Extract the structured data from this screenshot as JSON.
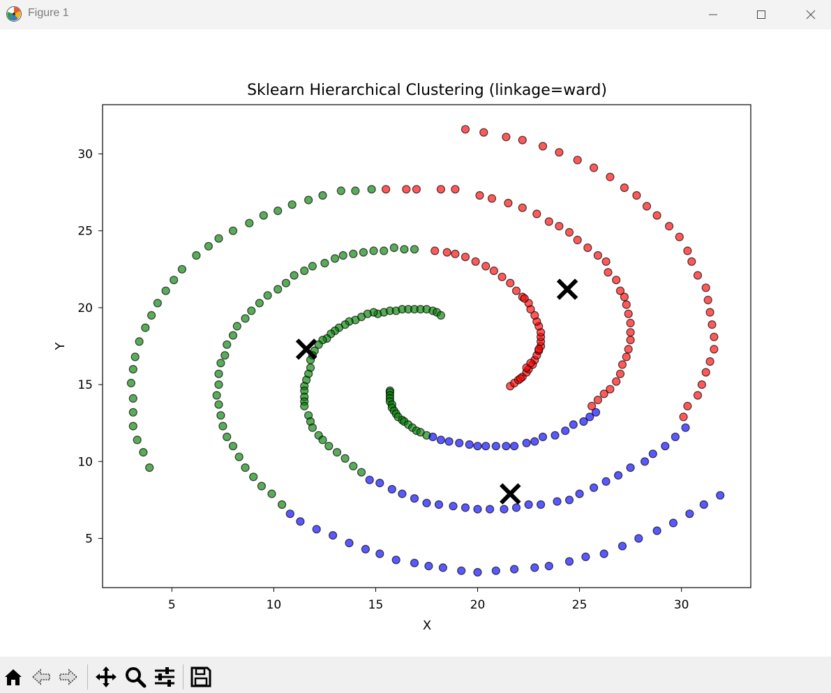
{
  "window": {
    "title": "Figure 1",
    "app_icon": "matplotlib-icon"
  },
  "toolbar": {
    "items": [
      {
        "name": "home-button",
        "icon": "home-icon"
      },
      {
        "name": "back-button",
        "icon": "back-arrow-icon"
      },
      {
        "name": "forward-button",
        "icon": "forward-arrow-icon"
      },
      {
        "name": "pan-button",
        "icon": "pan-move-icon"
      },
      {
        "name": "zoom-button",
        "icon": "zoom-magnifier-icon"
      },
      {
        "name": "configure-subplots-button",
        "icon": "sliders-icon"
      },
      {
        "name": "save-button",
        "icon": "floppy-disk-icon"
      }
    ]
  },
  "chart_data": {
    "type": "scatter",
    "title": "Sklearn Hierarchical Clustering  (linkage=ward)",
    "xlabel": "X",
    "ylabel": "Y",
    "xlim": [
      1.6,
      33.4
    ],
    "ylim": [
      1.8,
      33.2
    ],
    "xticks": [
      5,
      10,
      15,
      20,
      25,
      30
    ],
    "yticks": [
      5,
      10,
      15,
      20,
      25,
      30
    ],
    "grid": false,
    "point_alpha": 0.65,
    "series": [
      {
        "color": "#008000",
        "points": [
          [
            15.7,
            14.6
          ],
          [
            15.7,
            14.5
          ],
          [
            15.7,
            14.3
          ],
          [
            15.7,
            14.1
          ],
          [
            15.7,
            13.9
          ],
          [
            15.8,
            13.7
          ],
          [
            15.8,
            13.5
          ],
          [
            15.9,
            13.3
          ],
          [
            16.0,
            13.1
          ],
          [
            16.1,
            12.9
          ],
          [
            16.3,
            12.7
          ],
          [
            16.4,
            12.6
          ],
          [
            16.6,
            12.4
          ],
          [
            16.8,
            12.2
          ],
          [
            17.0,
            12.0
          ],
          [
            17.2,
            11.9
          ],
          [
            17.5,
            11.7
          ],
          [
            15.1,
            19.6
          ],
          [
            15.4,
            19.7
          ],
          [
            15.7,
            19.8
          ],
          [
            16.0,
            19.8
          ],
          [
            16.3,
            19.9
          ],
          [
            16.6,
            19.9
          ],
          [
            16.9,
            19.9
          ],
          [
            17.2,
            19.9
          ],
          [
            17.5,
            19.9
          ],
          [
            17.8,
            19.8
          ],
          [
            18.0,
            19.7
          ],
          [
            18.2,
            19.5
          ],
          [
            14.9,
            19.7
          ],
          [
            14.6,
            19.6
          ],
          [
            14.3,
            19.4
          ],
          [
            14.0,
            19.2
          ],
          [
            13.7,
            19.1
          ],
          [
            13.5,
            18.9
          ],
          [
            13.2,
            18.7
          ],
          [
            13.0,
            18.5
          ],
          [
            12.8,
            18.3
          ],
          [
            12.6,
            18.0
          ],
          [
            12.4,
            17.9
          ],
          [
            12.2,
            17.6
          ],
          [
            12.0,
            17.2
          ],
          [
            11.9,
            16.9
          ],
          [
            11.8,
            16.6
          ],
          [
            11.8,
            16.1
          ],
          [
            11.7,
            15.7
          ],
          [
            11.6,
            15.3
          ],
          [
            11.5,
            14.9
          ],
          [
            11.5,
            14.6
          ],
          [
            11.5,
            14.2
          ],
          [
            11.5,
            13.9
          ],
          [
            11.5,
            13.6
          ],
          [
            11.7,
            13.0
          ],
          [
            11.8,
            12.6
          ],
          [
            11.9,
            12.2
          ],
          [
            12.2,
            11.7
          ],
          [
            12.4,
            11.4
          ],
          [
            12.7,
            11.0
          ],
          [
            13.1,
            10.6
          ],
          [
            13.5,
            10.2
          ],
          [
            13.9,
            9.7
          ],
          [
            14.3,
            9.3
          ],
          [
            16.9,
            23.8
          ],
          [
            16.4,
            23.8
          ],
          [
            15.9,
            23.9
          ],
          [
            15.4,
            23.7
          ],
          [
            14.9,
            23.7
          ],
          [
            14.4,
            23.6
          ],
          [
            13.9,
            23.5
          ],
          [
            13.4,
            23.4
          ],
          [
            13.0,
            23.2
          ],
          [
            12.5,
            22.9
          ],
          [
            11.9,
            22.7
          ],
          [
            11.5,
            22.4
          ],
          [
            11.0,
            22.1
          ],
          [
            10.6,
            21.6
          ],
          [
            10.2,
            21.2
          ],
          [
            9.7,
            20.8
          ],
          [
            9.3,
            20.3
          ],
          [
            8.9,
            19.8
          ],
          [
            8.6,
            19.3
          ],
          [
            8.2,
            18.8
          ],
          [
            8.0,
            18.2
          ],
          [
            7.7,
            17.6
          ],
          [
            7.6,
            16.9
          ],
          [
            7.4,
            16.4
          ],
          [
            7.3,
            15.7
          ],
          [
            7.3,
            15.0
          ],
          [
            7.2,
            14.3
          ],
          [
            7.3,
            13.7
          ],
          [
            7.4,
            13.0
          ],
          [
            7.5,
            12.3
          ],
          [
            7.7,
            11.6
          ],
          [
            8.0,
            11.0
          ],
          [
            8.3,
            10.3
          ],
          [
            8.6,
            9.6
          ],
          [
            9.0,
            9.0
          ],
          [
            9.4,
            8.4
          ],
          [
            9.9,
            7.9
          ],
          [
            10.4,
            7.2
          ],
          [
            14.8,
            27.7
          ],
          [
            14.0,
            27.6
          ],
          [
            13.3,
            27.6
          ],
          [
            12.4,
            27.3
          ],
          [
            11.7,
            27.0
          ],
          [
            10.9,
            26.7
          ],
          [
            10.2,
            26.3
          ],
          [
            9.5,
            26.0
          ],
          [
            8.8,
            25.5
          ],
          [
            8.0,
            25.0
          ],
          [
            7.3,
            24.5
          ],
          [
            6.8,
            24.0
          ],
          [
            6.2,
            23.4
          ],
          [
            5.5,
            22.5
          ],
          [
            5.1,
            21.8
          ],
          [
            4.7,
            21.1
          ],
          [
            4.3,
            20.3
          ],
          [
            4.0,
            19.5
          ],
          [
            3.7,
            18.7
          ],
          [
            3.4,
            17.8
          ],
          [
            3.2,
            16.8
          ],
          [
            3.1,
            16.0
          ],
          [
            3.0,
            15.1
          ],
          [
            3.1,
            14.1
          ],
          [
            3.1,
            13.2
          ],
          [
            3.1,
            12.3
          ],
          [
            3.3,
            11.4
          ],
          [
            3.6,
            10.6
          ],
          [
            3.9,
            9.6
          ]
        ]
      },
      {
        "color": "#ff0000",
        "points": [
          [
            21.6,
            14.9
          ],
          [
            21.8,
            15.1
          ],
          [
            22.0,
            15.3
          ],
          [
            22.2,
            15.5
          ],
          [
            22.4,
            15.8
          ],
          [
            22.5,
            16.0
          ],
          [
            22.7,
            16.3
          ],
          [
            22.8,
            16.6
          ],
          [
            22.9,
            16.9
          ],
          [
            23.0,
            17.2
          ],
          [
            23.1,
            17.5
          ],
          [
            23.1,
            17.8
          ],
          [
            23.1,
            18.1
          ],
          [
            23.1,
            18.4
          ],
          [
            23.0,
            18.8
          ],
          [
            22.9,
            19.1
          ],
          [
            22.8,
            19.5
          ],
          [
            22.6,
            19.9
          ],
          [
            22.5,
            20.3
          ],
          [
            22.2,
            20.7
          ],
          [
            21.9,
            21.1
          ],
          [
            21.6,
            21.6
          ],
          [
            21.2,
            22.0
          ],
          [
            20.8,
            22.4
          ],
          [
            20.4,
            22.7
          ],
          [
            19.9,
            23.0
          ],
          [
            19.4,
            23.3
          ],
          [
            18.9,
            23.5
          ],
          [
            18.5,
            23.6
          ],
          [
            17.9,
            23.7
          ],
          [
            22.4,
            16.1
          ],
          [
            22.6,
            16.4
          ],
          [
            22.3,
            20.6
          ],
          [
            23.0,
            17.3
          ],
          [
            22.1,
            15.4
          ],
          [
            17.0,
            27.7
          ],
          [
            15.5,
            27.7
          ],
          [
            16.5,
            27.7
          ],
          [
            18.2,
            27.7
          ],
          [
            18.9,
            27.7
          ],
          [
            20.1,
            27.3
          ],
          [
            20.7,
            27.1
          ],
          [
            21.5,
            26.8
          ],
          [
            22.2,
            26.5
          ],
          [
            22.9,
            26.1
          ],
          [
            23.5,
            25.6
          ],
          [
            24.0,
            25.3
          ],
          [
            24.5,
            24.9
          ],
          [
            24.9,
            24.4
          ],
          [
            25.4,
            23.9
          ],
          [
            25.9,
            23.4
          ],
          [
            26.3,
            23.0
          ],
          [
            26.4,
            22.3
          ],
          [
            26.8,
            21.8
          ],
          [
            27.0,
            21.1
          ],
          [
            27.2,
            20.7
          ],
          [
            27.3,
            20.2
          ],
          [
            27.4,
            19.6
          ],
          [
            27.5,
            19.0
          ],
          [
            27.5,
            18.4
          ],
          [
            27.5,
            17.9
          ],
          [
            27.4,
            17.3
          ],
          [
            27.3,
            16.8
          ],
          [
            27.1,
            16.3
          ],
          [
            27.0,
            15.7
          ],
          [
            26.8,
            15.2
          ],
          [
            26.5,
            14.7
          ],
          [
            26.2,
            14.4
          ],
          [
            25.9,
            14.0
          ],
          [
            25.6,
            13.6
          ],
          [
            19.4,
            31.6
          ],
          [
            20.3,
            31.4
          ],
          [
            21.4,
            31.1
          ],
          [
            22.2,
            30.9
          ],
          [
            23.2,
            30.5
          ],
          [
            24.0,
            30.1
          ],
          [
            24.9,
            29.6
          ],
          [
            25.7,
            29.1
          ],
          [
            26.5,
            28.5
          ],
          [
            27.2,
            27.8
          ],
          [
            27.8,
            27.3
          ],
          [
            28.3,
            26.6
          ],
          [
            28.8,
            26.0
          ],
          [
            29.4,
            25.3
          ],
          [
            29.9,
            24.6
          ],
          [
            30.3,
            23.7
          ],
          [
            30.5,
            23.0
          ],
          [
            30.8,
            22.1
          ],
          [
            31.2,
            21.3
          ],
          [
            31.3,
            20.5
          ],
          [
            31.4,
            19.7
          ],
          [
            31.5,
            18.9
          ],
          [
            31.6,
            18.1
          ],
          [
            31.6,
            17.3
          ],
          [
            31.4,
            16.5
          ],
          [
            31.2,
            15.8
          ],
          [
            31.0,
            15.0
          ],
          [
            30.8,
            14.3
          ],
          [
            30.3,
            13.6
          ],
          [
            30.1,
            12.9
          ]
        ]
      },
      {
        "color": "#0000ff",
        "points": [
          [
            17.8,
            11.6
          ],
          [
            18.2,
            11.4
          ],
          [
            18.6,
            11.3
          ],
          [
            19.1,
            11.2
          ],
          [
            19.6,
            11.1
          ],
          [
            20.0,
            11.0
          ],
          [
            20.4,
            11.0
          ],
          [
            20.9,
            11.0
          ],
          [
            21.4,
            11.0
          ],
          [
            21.8,
            11.0
          ],
          [
            22.4,
            11.2
          ],
          [
            22.8,
            11.3
          ],
          [
            23.2,
            11.6
          ],
          [
            23.8,
            11.7
          ],
          [
            24.3,
            12.0
          ],
          [
            24.7,
            12.4
          ],
          [
            25.2,
            12.6
          ],
          [
            25.5,
            12.9
          ],
          [
            25.8,
            13.2
          ],
          [
            14.7,
            8.8
          ],
          [
            15.2,
            8.6
          ],
          [
            15.8,
            8.2
          ],
          [
            16.3,
            7.9
          ],
          [
            16.9,
            7.6
          ],
          [
            17.5,
            7.3
          ],
          [
            18.1,
            7.2
          ],
          [
            18.8,
            7.1
          ],
          [
            19.4,
            7.0
          ],
          [
            20.0,
            6.9
          ],
          [
            20.6,
            6.9
          ],
          [
            21.3,
            6.9
          ],
          [
            21.9,
            7.0
          ],
          [
            22.5,
            7.2
          ],
          [
            23.1,
            7.2
          ],
          [
            23.9,
            7.4
          ],
          [
            24.5,
            7.5
          ],
          [
            25.0,
            7.9
          ],
          [
            25.7,
            8.3
          ],
          [
            26.3,
            8.7
          ],
          [
            26.9,
            9.1
          ],
          [
            27.5,
            9.6
          ],
          [
            28.2,
            10.0
          ],
          [
            28.6,
            10.5
          ],
          [
            29.2,
            11.0
          ],
          [
            29.7,
            11.6
          ],
          [
            30.2,
            12.2
          ],
          [
            10.8,
            6.6
          ],
          [
            11.3,
            6.1
          ],
          [
            12.1,
            5.6
          ],
          [
            12.9,
            5.2
          ],
          [
            13.7,
            4.7
          ],
          [
            14.5,
            4.3
          ],
          [
            15.2,
            4.0
          ],
          [
            16.0,
            3.6
          ],
          [
            16.9,
            3.4
          ],
          [
            17.6,
            3.2
          ],
          [
            18.3,
            3.1
          ],
          [
            19.2,
            2.9
          ],
          [
            20.0,
            2.8
          ],
          [
            20.9,
            2.9
          ],
          [
            21.8,
            3.0
          ],
          [
            22.8,
            3.1
          ],
          [
            23.5,
            3.2
          ],
          [
            24.5,
            3.5
          ],
          [
            25.3,
            3.8
          ],
          [
            26.2,
            4.0
          ],
          [
            27.1,
            4.5
          ],
          [
            27.9,
            5.0
          ],
          [
            28.8,
            5.5
          ],
          [
            29.6,
            6.0
          ],
          [
            30.4,
            6.6
          ],
          [
            31.1,
            7.2
          ],
          [
            31.9,
            7.8
          ]
        ]
      }
    ],
    "centroids": {
      "marker": "X",
      "color": "#000000",
      "points": [
        [
          11.6,
          17.3
        ],
        [
          24.4,
          21.2
        ],
        [
          21.6,
          7.9
        ]
      ]
    }
  }
}
